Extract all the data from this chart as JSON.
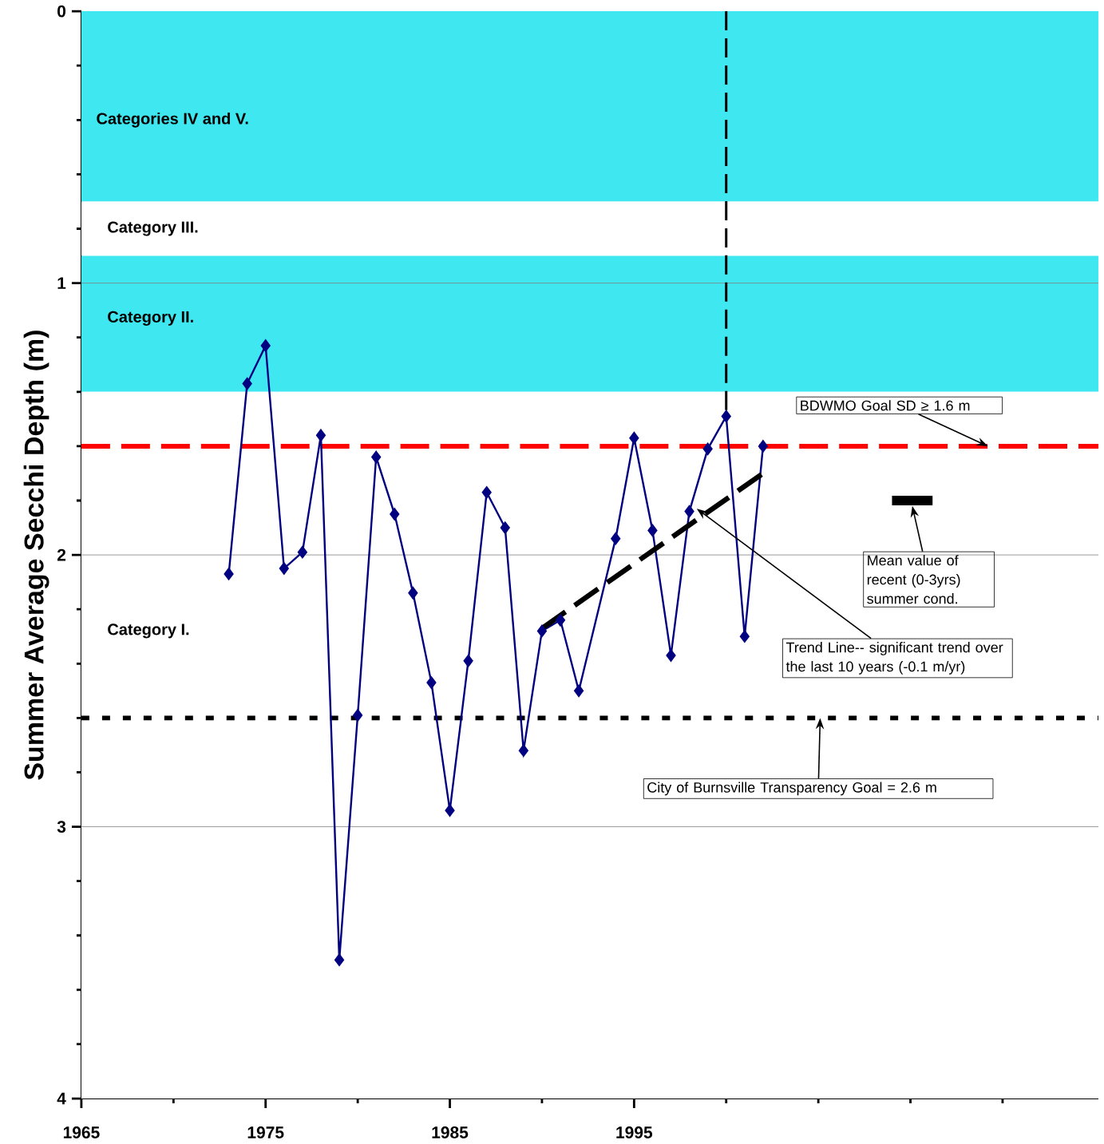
{
  "chart_data": {
    "type": "line",
    "ylabel": "Summer Average Secchi Depth (m)",
    "xlim": [
      1965,
      2020.2
    ],
    "ylim": [
      4,
      0
    ],
    "xticks": [
      1965,
      {
        "value": 1970,
        "label": null
      },
      1975,
      {
        "value": 1980,
        "label": null
      },
      1985,
      {
        "value": 1990,
        "label": null
      },
      1995,
      {
        "value": 2000,
        "label": null
      },
      {
        "value": 2005,
        "label": null
      },
      {
        "value": 2010,
        "label": null
      },
      {
        "value": 2015,
        "label": null
      }
    ],
    "yticks": [
      0,
      {
        "value": 0.2,
        "label": null
      },
      {
        "value": 0.4,
        "label": null
      },
      {
        "value": 0.6,
        "label": null
      },
      {
        "value": 0.8,
        "label": null
      },
      1,
      {
        "value": 1.2,
        "label": null
      },
      {
        "value": 1.4,
        "label": null
      },
      {
        "value": 1.6,
        "label": null
      },
      {
        "value": 1.8,
        "label": null
      },
      2,
      {
        "value": 2.2,
        "label": null
      },
      {
        "value": 2.4,
        "label": null
      },
      {
        "value": 2.6,
        "label": null
      },
      {
        "value": 2.8,
        "label": null
      },
      3,
      {
        "value": 3.2,
        "label": null
      },
      {
        "value": 3.4,
        "label": null
      },
      {
        "value": 3.6,
        "label": null
      },
      {
        "value": 3.8,
        "label": null
      },
      4
    ],
    "grid": "y",
    "series": [
      {
        "color": "#000080",
        "marker": "diamond",
        "line_style": "solid",
        "x": [
          1973,
          1974,
          1975,
          1976,
          1977,
          1978,
          1979,
          1980,
          1981,
          1982,
          1983,
          1984,
          1985,
          1986,
          1987,
          1988,
          1989,
          1990,
          1991,
          1992,
          1994,
          1995,
          1996,
          1997,
          1998,
          1999,
          2000,
          2001,
          2002
        ],
        "values": [
          2.07,
          1.37,
          1.23,
          2.05,
          1.99,
          1.56,
          3.49,
          2.59,
          1.64,
          1.85,
          2.14,
          2.47,
          2.94,
          2.39,
          1.77,
          1.9,
          2.72,
          2.28,
          2.24,
          2.5,
          1.94,
          1.57,
          1.91,
          2.37,
          1.84,
          1.61,
          1.49,
          2.3,
          1.6
        ]
      },
      {
        "color": "#000000",
        "marker": "none",
        "line_style": "dashed",
        "x": [
          1990,
          2002
        ],
        "values": [
          2.27,
          1.7
        ]
      },
      {
        "color": "#000000",
        "marker": "none",
        "line_style": "solid",
        "x": [
          2009,
          2011.2
        ],
        "values": [
          1.8,
          1.8
        ]
      }
    ],
    "bands": [
      {
        "axis": "y",
        "from": 0,
        "to": 0.7,
        "label": "Categories IV and V.",
        "color": "#3fe8f0"
      },
      {
        "axis": "y",
        "from": 0.7,
        "to": 0.9,
        "label": "Category III.",
        "color": "#ffffff"
      },
      {
        "axis": "y",
        "from": 0.9,
        "to": 1.4,
        "label": "Category II.",
        "color": "#3fe8f0"
      },
      {
        "axis": "y",
        "from": 1.4,
        "to": 4,
        "label": "Category I.",
        "color": "#ffffff"
      }
    ],
    "ref_lines": [
      {
        "axis": "y",
        "value": 1.6,
        "color": "#ff0000",
        "line_style": "dashed"
      },
      {
        "axis": "y",
        "value": 2.6,
        "color": "#000000",
        "line_style": "dotted"
      },
      {
        "axis": "x",
        "value": 2000,
        "color": "#000000",
        "line_style": "dashed"
      }
    ],
    "annotations": [
      {
        "text": "BDWMO Goal SD ≥ 1.6 m",
        "x": 2014.2,
        "y": 1.6
      },
      {
        "text": "Mean value of recent (0-3yrs) summer cond.",
        "x": 2010.1,
        "y": 1.82
      },
      {
        "text": "Trend Line-- significant trend over the last 10 years (-0.1 m/yr)",
        "x": 1998.4,
        "y": 1.83
      },
      {
        "text": "City of Burnsville Transparency Goal = 2.6 m",
        "x": 2005.1,
        "y": 2.6
      }
    ]
  }
}
